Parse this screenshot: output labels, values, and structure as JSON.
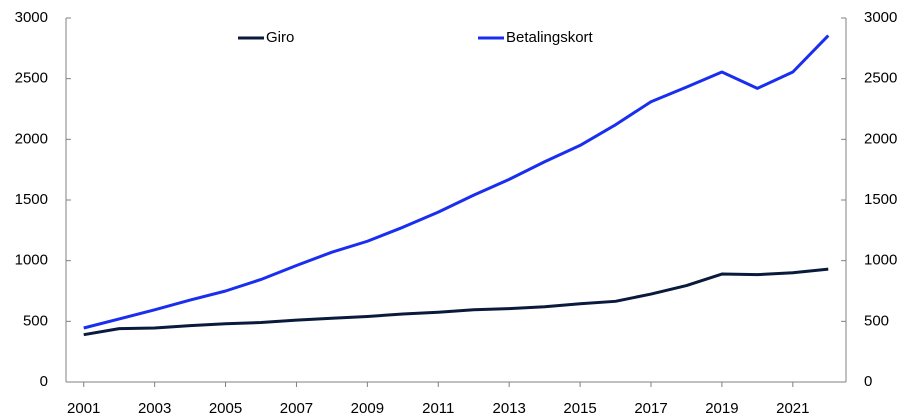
{
  "chart_data": {
    "type": "line",
    "x": [
      2001,
      2002,
      2003,
      2004,
      2005,
      2006,
      2007,
      2008,
      2009,
      2010,
      2011,
      2012,
      2013,
      2014,
      2015,
      2016,
      2017,
      2018,
      2019,
      2020,
      2021,
      2022
    ],
    "series": [
      {
        "name": "Giro",
        "color": "#0a1a3c",
        "values": [
          390,
          440,
          445,
          465,
          480,
          490,
          510,
          525,
          540,
          560,
          575,
          595,
          605,
          620,
          645,
          665,
          725,
          795,
          890,
          885,
          900,
          930
        ]
      },
      {
        "name": "Betalingskort",
        "color": "#1a2ef0",
        "values": [
          445,
          520,
          595,
          675,
          750,
          845,
          960,
          1070,
          1160,
          1275,
          1400,
          1540,
          1670,
          1815,
          1950,
          2120,
          2310,
          2430,
          2555,
          2420,
          2555,
          2855
        ]
      }
    ],
    "xlim": [
      2000.5,
      2022.5
    ],
    "xticks": [
      2001,
      2003,
      2005,
      2007,
      2009,
      2011,
      2013,
      2015,
      2017,
      2019,
      2021
    ],
    "ylim": [
      0,
      3000
    ],
    "yticks": [
      0,
      500,
      1000,
      1500,
      2000,
      2500,
      3000
    ],
    "y2lim": [
      0,
      3000
    ],
    "y2ticks": [
      0,
      500,
      1000,
      1500,
      2000,
      2500,
      3000
    ]
  }
}
